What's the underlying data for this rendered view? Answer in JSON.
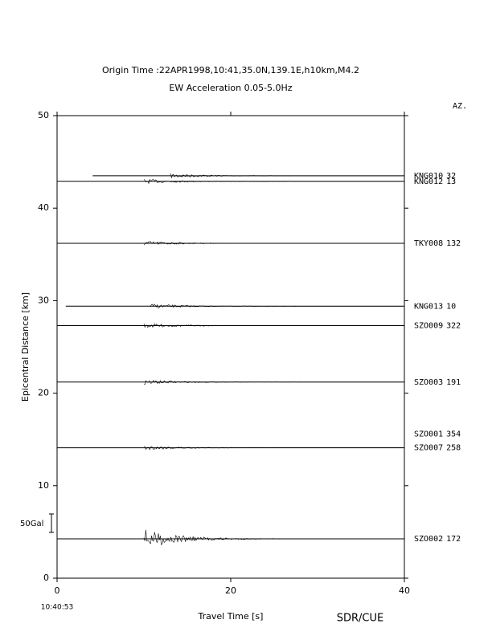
{
  "chart_data": {
    "type": "record-section",
    "title": "Origin Time :22APR1998,10:41,35.0N,139.1E,h10km,M4.2",
    "subtitle": "EW Acceleration 0.05-5.0Hz",
    "azimuth_header": "AZ.",
    "y_label": "Epicentral Distance [km]",
    "x_label": "Travel Time [s]",
    "origin_time_label": "10:40:53",
    "scale_label": "50Gal",
    "credit": "SDR/CUE",
    "xlim": [
      0,
      40
    ],
    "xticks": [
      0,
      20,
      40
    ],
    "ylim": [
      0,
      50
    ],
    "yticks": [
      0,
      10,
      20,
      30,
      40,
      50
    ],
    "stations": [
      {
        "name": "KNG010",
        "azimuth": 32,
        "distance": 43.5,
        "start": 4.1
      },
      {
        "name": "KNG012",
        "azimuth": 13,
        "distance": 42.9,
        "start": 0
      },
      {
        "name": "TKY008",
        "azimuth": 132,
        "distance": 36.2,
        "start": 0
      },
      {
        "name": "KNG013",
        "azimuth": 10,
        "distance": 29.4,
        "start": 1.0
      },
      {
        "name": "SZO009",
        "azimuth": 322,
        "distance": 27.3,
        "start": 0
      },
      {
        "name": "SZO003",
        "azimuth": 191,
        "distance": 21.2,
        "start": 0
      },
      {
        "name": "SZO001",
        "azimuth": 354,
        "distance": 15.6,
        "start": null
      },
      {
        "name": "SZO007",
        "azimuth": 258,
        "distance": 14.1,
        "start": 0
      },
      {
        "name": "SZO002",
        "azimuth": 172,
        "distance": 4.25,
        "start": 0
      }
    ]
  }
}
